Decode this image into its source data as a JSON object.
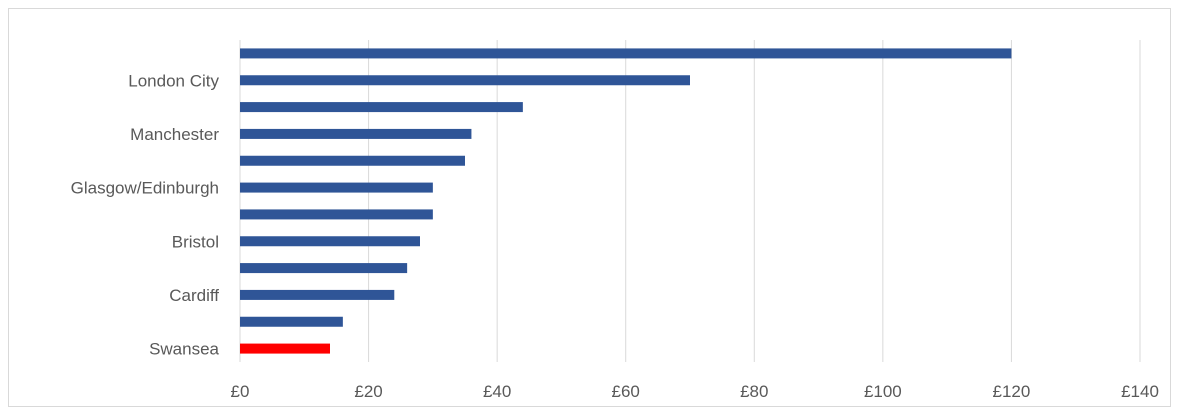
{
  "chart_data": {
    "type": "bar",
    "orientation": "horizontal",
    "categories": [
      "",
      "London City",
      "",
      "Manchester",
      "",
      "Glasgow/Edinburgh",
      "",
      "Bristol",
      "",
      "Cardiff",
      "",
      "Swansea"
    ],
    "values": [
      120,
      70,
      44,
      36,
      35,
      30,
      30,
      28,
      26,
      24,
      16,
      14
    ],
    "x_ticks": [
      "£0",
      "£20",
      "£40",
      "£60",
      "£80",
      "£100",
      "£120",
      "£140"
    ],
    "x_tick_values": [
      0,
      20,
      40,
      60,
      80,
      100,
      120,
      140
    ],
    "xlim": [
      0,
      140
    ],
    "title": "",
    "xlabel": "",
    "ylabel": "",
    "grid": "vertical",
    "legend": "none",
    "colors": {
      "default": "#2f5597",
      "highlight": "#ff0000",
      "grid": "#d9d9d9",
      "text": "#595959"
    },
    "highlight_index": 11
  }
}
